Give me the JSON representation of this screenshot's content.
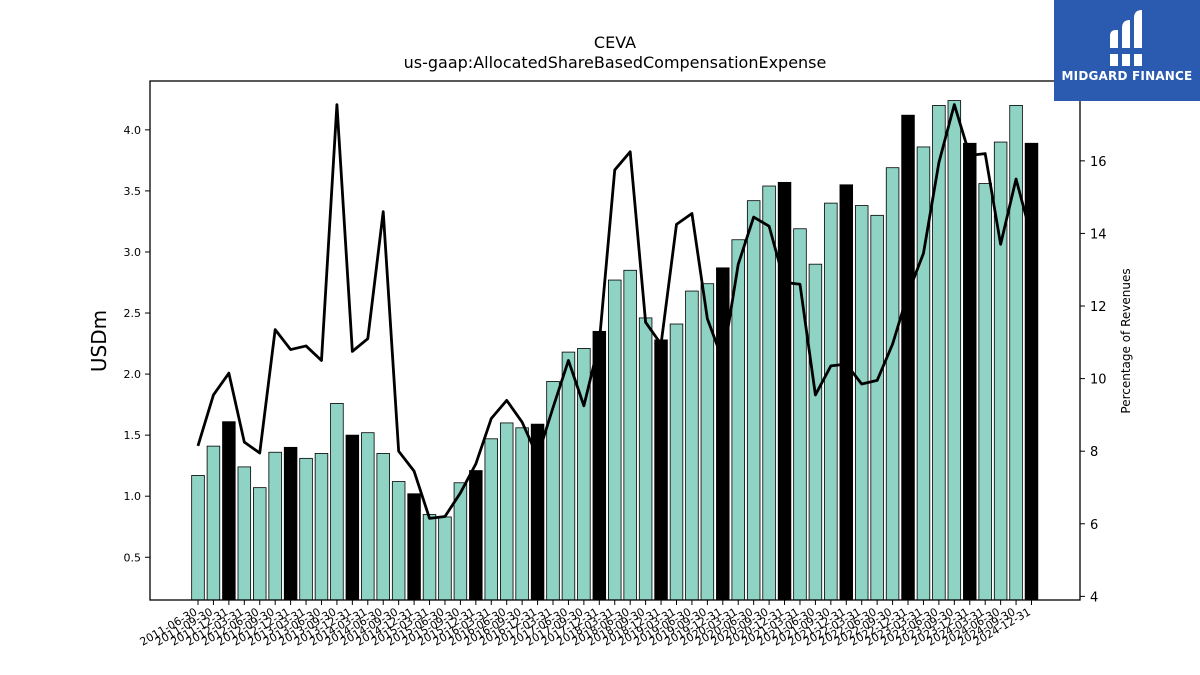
{
  "chart_data": {
    "type": "bar",
    "title": "CEVA",
    "subtitle": "us-gaap:AllocatedShareBasedCompensationExpense",
    "ylabel": "USDm",
    "y2label": "Percentage of Revenues",
    "ylim": [
      0.15,
      4.4
    ],
    "y2lim": [
      3.9,
      18.2
    ],
    "yticks": [
      0.5,
      1.0,
      1.5,
      2.0,
      2.5,
      3.0,
      3.5,
      4.0
    ],
    "y2ticks": [
      4,
      6,
      8,
      10,
      12,
      14,
      16
    ],
    "categories": [
      "2011-06-30",
      "2011-09-30",
      "2011-12-31",
      "2012-03-31",
      "2012-06-30",
      "2012-09-30",
      "2012-12-31",
      "2013-03-31",
      "2013-06-30",
      "2013-09-30",
      "2013-12-31",
      "2014-03-31",
      "2014-06-30",
      "2014-09-30",
      "2014-12-31",
      "2015-03-31",
      "2015-06-30",
      "2015-09-30",
      "2015-12-31",
      "2016-03-31",
      "2016-06-30",
      "2016-09-30",
      "2016-12-31",
      "2017-03-31",
      "2017-06-30",
      "2017-09-30",
      "2017-12-31",
      "2018-03-31",
      "2018-06-30",
      "2018-09-30",
      "2018-12-31",
      "2019-03-31",
      "2019-06-30",
      "2019-09-30",
      "2019-12-31",
      "2020-03-31",
      "2020-06-30",
      "2020-09-30",
      "2020-12-31",
      "2021-03-31",
      "2021-06-30",
      "2021-09-30",
      "2021-12-31",
      "2022-03-31",
      "2022-06-30",
      "2022-09-30",
      "2022-12-31",
      "2023-03-31",
      "2023-06-30",
      "2023-09-30",
      "2023-12-31",
      "2024-03-31",
      "2024-06-30",
      "2024-09-30",
      "2024-12-31"
    ],
    "series": [
      {
        "name": "",
        "kind": "bar",
        "values": [
          1.17,
          1.41,
          1.61,
          1.24,
          1.07,
          1.36,
          1.4,
          1.31,
          1.35,
          1.76,
          1.5,
          1.52,
          1.35,
          1.12,
          1.02,
          0.85,
          0.83,
          1.11,
          1.21,
          1.47,
          1.6,
          1.56,
          1.59,
          1.94,
          2.18,
          2.21,
          2.35,
          2.77,
          2.85,
          2.46,
          2.28,
          2.41,
          2.68,
          2.74,
          2.87,
          3.1,
          3.42,
          3.54,
          3.57,
          3.19,
          2.9,
          3.4,
          3.55,
          3.38,
          3.3,
          3.69,
          4.12,
          3.86,
          4.2,
          4.24,
          3.89,
          3.56,
          3.9,
          4.2,
          3.89
        ],
        "highlight_color": "#000000",
        "base_color": "#8fd3c5"
      },
      {
        "name": "",
        "kind": "line",
        "axis": "right",
        "values": [
          8.15,
          9.55,
          10.15,
          8.25,
          7.95,
          11.35,
          10.8,
          10.9,
          10.5,
          17.55,
          10.75,
          11.1,
          14.6,
          8.0,
          7.45,
          6.15,
          6.2,
          6.85,
          7.65,
          8.9,
          9.4,
          8.8,
          7.85,
          9.2,
          10.5,
          9.25,
          11.0,
          15.75,
          16.25,
          11.55,
          10.95,
          14.25,
          14.55,
          11.65,
          10.5,
          13.15,
          14.45,
          14.2,
          12.65,
          12.6,
          9.55,
          10.35,
          10.4,
          9.85,
          9.95,
          10.95,
          12.35,
          13.45,
          15.95,
          17.55,
          16.15,
          16.2,
          13.7,
          15.5,
          13.9
        ]
      }
    ],
    "highlight_quarter": "12-31",
    "grid": false,
    "legend": "none"
  },
  "logo": {
    "text": "MIDGARD FINANCE",
    "icon": "midgard-logo-icon",
    "color": "#2b5bb0"
  }
}
